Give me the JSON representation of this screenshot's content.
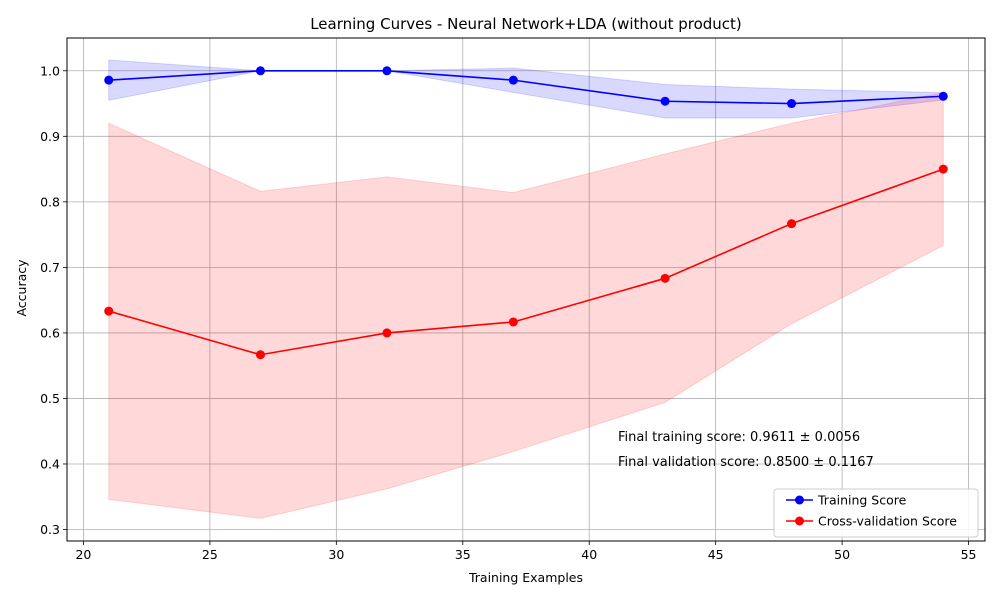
{
  "chart_data": {
    "type": "line",
    "title": "Learning Curves - Neural Network+LDA (without product)",
    "xlabel": "Training Examples",
    "ylabel": "Accuracy",
    "xlim": [
      19.35,
      55.65
    ],
    "ylim": [
      0.2825,
      1.05
    ],
    "xticks": [
      20,
      25,
      30,
      35,
      40,
      45,
      50,
      55
    ],
    "yticks": [
      0.3,
      0.4,
      0.5,
      0.6,
      0.7,
      0.8,
      0.9,
      1.0
    ],
    "ytick_labels": [
      "0.3",
      "0.4",
      "0.5",
      "0.6",
      "0.7",
      "0.8",
      "0.9",
      "1.0"
    ],
    "grid": true,
    "legend_position": "lower-right",
    "x": [
      21,
      27,
      32,
      37,
      43,
      48,
      54
    ],
    "series": [
      {
        "name": "Training Score",
        "color": "#0000ff",
        "band_color": "#0000ff",
        "values": [
          0.9857,
          1.0,
          1.0,
          0.9857,
          0.9535,
          0.95,
          0.9611
        ],
        "band_upper": [
          1.0165,
          1.0,
          1.0,
          1.004,
          0.979,
          0.972,
          0.9667
        ],
        "band_lower": [
          0.955,
          1.0,
          1.0,
          0.967,
          0.928,
          0.928,
          0.9555
        ]
      },
      {
        "name": "Cross-validation Score",
        "color": "#ff0000",
        "band_color": "#ff0000",
        "values": [
          0.6333,
          0.5667,
          0.6,
          0.6167,
          0.6833,
          0.7667,
          0.85
        ],
        "band_upper": [
          0.92,
          0.816,
          0.838,
          0.814,
          0.873,
          0.92,
          0.9667
        ],
        "band_lower": [
          0.346,
          0.317,
          0.362,
          0.419,
          0.494,
          0.614,
          0.7333
        ]
      }
    ],
    "annotations": [
      "Final training score: 0.9611 ± 0.0056",
      "Final validation score: 0.8500 ± 0.1167"
    ]
  }
}
